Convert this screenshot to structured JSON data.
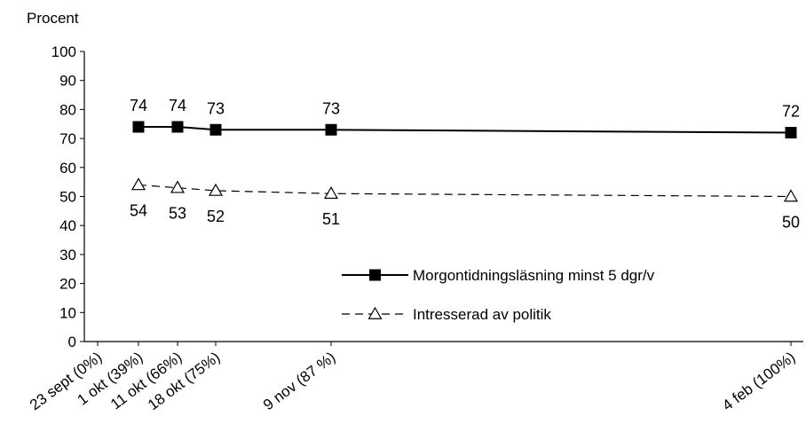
{
  "chart_data": {
    "type": "line",
    "ylabel": "Procent",
    "ylim": [
      0,
      100
    ],
    "yticks": [
      0,
      10,
      20,
      30,
      40,
      50,
      60,
      70,
      80,
      90,
      100
    ],
    "categories": [
      "23 sept (0%)",
      "1 okt (39%)",
      "11 okt (66%)",
      "18 okt (75%)",
      "9 nov (87 %)",
      "4 feb (100%)"
    ],
    "x_position_days": [
      0,
      8,
      18,
      25,
      47,
      134
    ],
    "series": [
      {
        "name": "Morgontidningsläsning minst 5 dgr/v",
        "style": "solid",
        "marker": "square",
        "color": "#000000",
        "points": [
          {
            "x": "1 okt (39%)",
            "y": 74
          },
          {
            "x": "11 okt (66%)",
            "y": 74
          },
          {
            "x": "18 okt (75%)",
            "y": 73
          },
          {
            "x": "9 nov (87 %)",
            "y": 73
          },
          {
            "x": "4 feb (100%)",
            "y": 72
          }
        ],
        "labels": [
          "74",
          "74",
          "73",
          "73",
          "72"
        ]
      },
      {
        "name": "Intresserad av politik",
        "style": "dashed",
        "marker": "triangle-open",
        "color": "#000000",
        "points": [
          {
            "x": "1 okt (39%)",
            "y": 54
          },
          {
            "x": "11 okt (66%)",
            "y": 53
          },
          {
            "x": "18 okt (75%)",
            "y": 52
          },
          {
            "x": "9 nov (87 %)",
            "y": 51
          },
          {
            "x": "4 feb (100%)",
            "y": 50
          }
        ],
        "labels": [
          "54",
          "53",
          "52",
          "51",
          "50"
        ]
      }
    ],
    "legend": {
      "placement": "lower-right",
      "entries": [
        "Morgontidningsläsning minst 5 dgr/v",
        "Intresserad av politik"
      ]
    },
    "grid": false
  }
}
